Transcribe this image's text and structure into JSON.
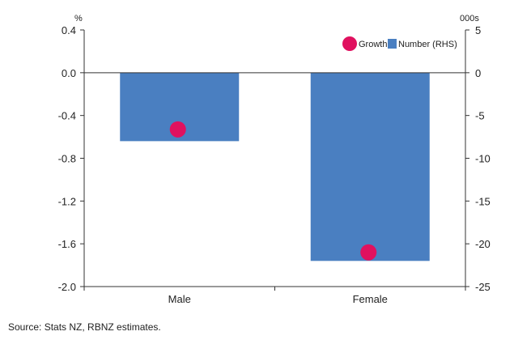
{
  "chart_data": {
    "type": "bar",
    "categories": [
      "Male",
      "Female"
    ],
    "series": [
      {
        "name": "Number (RHS)",
        "type": "bar",
        "axis": "right",
        "color": "#4a7fc1",
        "values": [
          -8,
          -22
        ]
      },
      {
        "name": "Growth",
        "type": "scatter",
        "axis": "left",
        "color": "#e0115f",
        "values": [
          -0.53,
          -1.68
        ]
      }
    ],
    "left_axis": {
      "unit": "%",
      "ylim": [
        -2.0,
        0.4
      ],
      "ticks": [
        "0.4",
        "0.0",
        "-0.4",
        "-0.8",
        "-1.2",
        "-1.6",
        "-2.0"
      ]
    },
    "right_axis": {
      "unit": "000s",
      "ylim": [
        -25,
        5
      ],
      "ticks": [
        "5",
        "0",
        "-5",
        "-10",
        "-15",
        "-20",
        "-25"
      ]
    },
    "legend_position": "top-right",
    "grid": false
  },
  "source": "Source: Stats NZ, RBNZ estimates."
}
